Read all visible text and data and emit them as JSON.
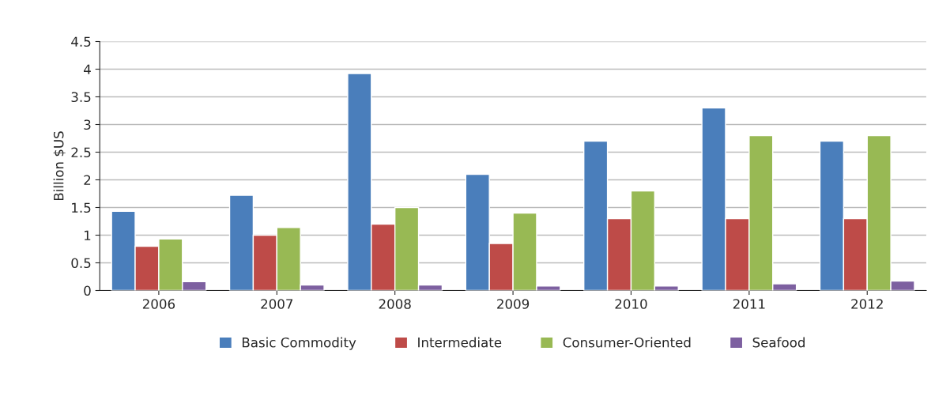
{
  "chart_data": {
    "type": "bar",
    "ylabel": "Billion $US",
    "categories": [
      "2006",
      "2007",
      "2008",
      "2009",
      "2010",
      "2011",
      "2012"
    ],
    "series": [
      {
        "name": "Basic Commodity",
        "color": "#4a7ebb",
        "values": [
          1.43,
          1.72,
          3.92,
          2.1,
          2.7,
          3.3,
          2.7
        ]
      },
      {
        "name": "Intermediate",
        "color": "#be4b48",
        "values": [
          0.8,
          1.0,
          1.2,
          0.85,
          1.3,
          1.3,
          1.3
        ]
      },
      {
        "name": "Consumer-Oriented",
        "color": "#98b954",
        "values": [
          0.93,
          1.14,
          1.5,
          1.4,
          1.8,
          2.8,
          2.8
        ]
      },
      {
        "name": "Seafood",
        "color": "#7d60a0",
        "values": [
          0.16,
          0.1,
          0.1,
          0.08,
          0.08,
          0.12,
          0.17
        ]
      }
    ],
    "ylim": [
      0,
      4.5
    ],
    "yticks": [
      0,
      0.5,
      1,
      1.5,
      2,
      2.5,
      3,
      3.5,
      4,
      4.5
    ],
    "grid": "y",
    "legend": "bottom"
  }
}
